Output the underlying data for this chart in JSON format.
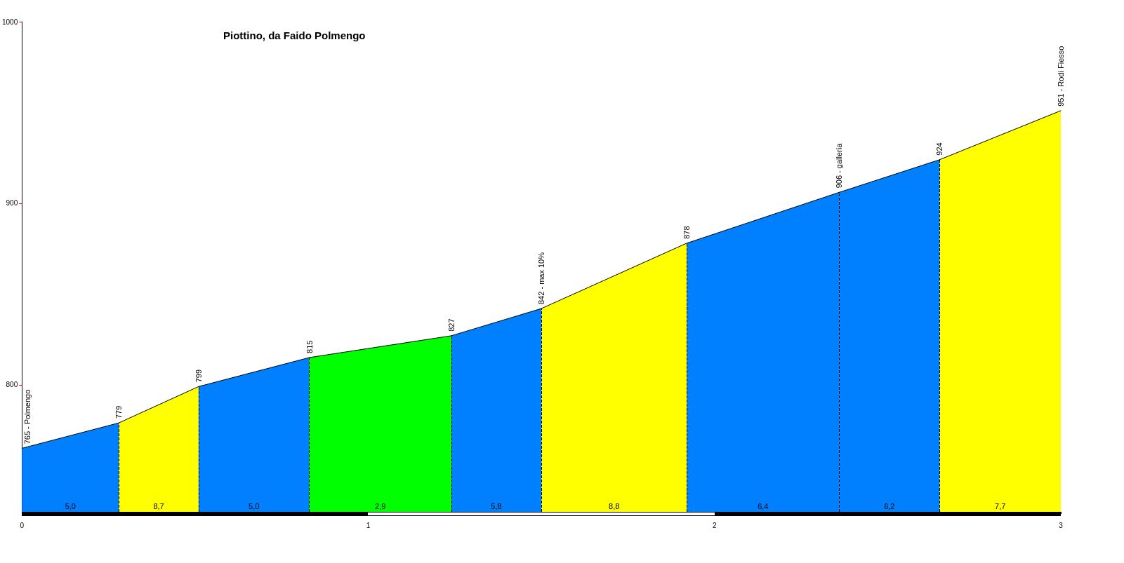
{
  "chart_data": {
    "type": "area",
    "title": "Piottino, da Faido Polmengo",
    "series": [
      {
        "color": "#0080ff",
        "x": [
          0,
          0.28
        ],
        "values": [
          765,
          779
        ],
        "value_labels": [
          "765 - Polmengo",
          null
        ]
      },
      {
        "color": "#ffff00",
        "x": [
          0.28,
          0.51
        ],
        "values": [
          779,
          799
        ],
        "value_labels": [
          "779",
          null
        ]
      },
      {
        "color": "#0080ff",
        "x": [
          0.51,
          0.83
        ],
        "values": [
          799,
          815
        ],
        "value_labels": [
          "799",
          null
        ]
      },
      {
        "color": "#00ff00",
        "x": [
          0.83,
          1.24
        ],
        "values": [
          815,
          827
        ],
        "value_labels": [
          "815",
          null
        ]
      },
      {
        "color": "#0080ff",
        "x": [
          1.24,
          1.5
        ],
        "values": [
          827,
          842
        ],
        "value_labels": [
          "827",
          null
        ]
      },
      {
        "color": "#ffff00",
        "x": [
          1.5,
          1.92
        ],
        "values": [
          842,
          878
        ],
        "value_labels": [
          "842 - max 10%",
          null
        ]
      },
      {
        "color": "#0080ff",
        "x": [
          1.92,
          2.36
        ],
        "values": [
          878,
          906
        ],
        "value_labels": [
          "878",
          null
        ]
      },
      {
        "color": "#0080ff",
        "x": [
          2.36,
          2.65
        ],
        "values": [
          906,
          924
        ],
        "value_labels": [
          "906 - galleria",
          null
        ]
      },
      {
        "color": "#ffff00",
        "x": [
          2.65,
          3
        ],
        "values": [
          924,
          951
        ],
        "value_labels": [
          "924",
          "951 - Rodi Fiesso"
        ]
      }
    ],
    "annotations": [
      {
        "text": "5,0",
        "x": 0.14,
        "y": 730
      },
      {
        "text": "8,7",
        "x": 0.395,
        "y": 730
      },
      {
        "text": "5,0",
        "x": 0.67,
        "y": 730
      },
      {
        "text": "2,9",
        "x": 1.035,
        "y": 730
      },
      {
        "text": "5,8",
        "x": 1.37,
        "y": 730
      },
      {
        "text": "8,8",
        "x": 1.71,
        "y": 730
      },
      {
        "text": "6,4",
        "x": 2.14,
        "y": 730
      },
      {
        "text": "6,2",
        "x": 2.505,
        "y": 730
      },
      {
        "text": "7,7",
        "x": 2.825,
        "y": 730
      }
    ],
    "xlim": [
      0,
      3
    ],
    "xticks": [
      0,
      1,
      2,
      3
    ],
    "ylim": [
      730,
      1000
    ],
    "yticks": [
      800,
      900,
      1000
    ],
    "grid": false,
    "marker": "none",
    "line_style": "solid"
  }
}
